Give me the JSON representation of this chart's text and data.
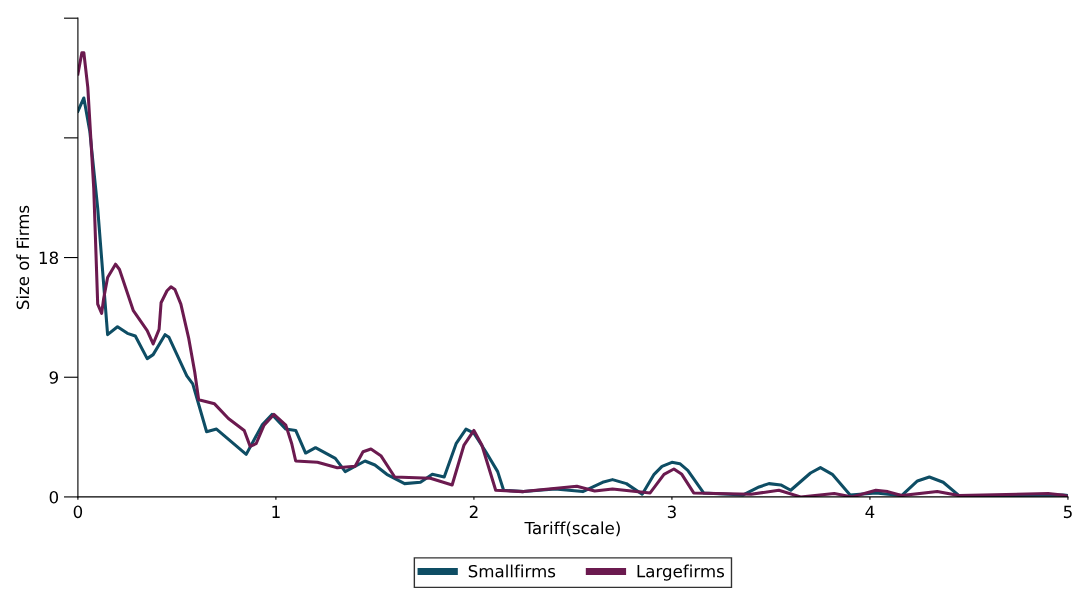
{
  "chart_data": {
    "type": "line",
    "xlabel": "Tariff(scale)",
    "ylabel": "Size of Firms",
    "xlim": [
      0,
      5
    ],
    "xticks": [
      0,
      1,
      2,
      3,
      4,
      5
    ],
    "ylim": [
      0,
      36
    ],
    "yticks": [
      0,
      9,
      18,
      {
        "value": 27,
        "label": null
      },
      {
        "value": 36,
        "label": null
      }
    ],
    "grid": false,
    "legend": "bottom",
    "marker": "none",
    "line_style": "solid",
    "series": [
      {
        "name": "Smallfirms",
        "color": "#0e4d64",
        "x": [
          0,
          0.03,
          0.06,
          0.1,
          0.15,
          0.2,
          0.25,
          0.29,
          0.35,
          0.38,
          0.44,
          0.46,
          0.55,
          0.58,
          0.65,
          0.7,
          0.85,
          0.93,
          0.98,
          1.05,
          1.1,
          1.15,
          1.2,
          1.3,
          1.35,
          1.45,
          1.5,
          1.56,
          1.65,
          1.73,
          1.79,
          1.85,
          1.91,
          1.96,
          2.0,
          2.06,
          2.12,
          2.15,
          2.25,
          2.41,
          2.55,
          2.65,
          2.7,
          2.77,
          2.85,
          2.91,
          2.95,
          3.0,
          3.04,
          3.08,
          3.16,
          3.36,
          3.44,
          3.49,
          3.55,
          3.6,
          3.7,
          3.75,
          3.81,
          3.9,
          4.03,
          4.16,
          4.24,
          4.3,
          4.37,
          4.45,
          4.7,
          4.98,
          5.0
        ],
        "values": [
          29.0,
          30.0,
          27.5,
          21.7,
          12.2,
          12.8,
          12.3,
          12.1,
          10.4,
          10.7,
          12.2,
          12.0,
          9.1,
          8.5,
          4.9,
          5.1,
          3.2,
          5.4,
          6.2,
          5.1,
          5.0,
          3.3,
          3.7,
          2.9,
          1.9,
          2.7,
          2.4,
          1.7,
          1.0,
          1.1,
          1.7,
          1.5,
          4.0,
          5.1,
          4.8,
          3.4,
          1.9,
          0.5,
          0.4,
          0.6,
          0.4,
          1.1,
          1.3,
          1.0,
          0.2,
          1.7,
          2.3,
          2.6,
          2.5,
          2.0,
          0.3,
          0.15,
          0.75,
          1.0,
          0.9,
          0.5,
          1.8,
          2.2,
          1.7,
          0.15,
          0.3,
          0.1,
          1.2,
          1.5,
          1.1,
          0.1,
          0.1,
          0.15,
          0.1
        ]
      },
      {
        "name": "Largefirms",
        "color": "#6b1a4f",
        "x": [
          0,
          0.02,
          0.03,
          0.05,
          0.08,
          0.1,
          0.12,
          0.13,
          0.15,
          0.19,
          0.21,
          0.28,
          0.35,
          0.38,
          0.41,
          0.42,
          0.45,
          0.47,
          0.49,
          0.52,
          0.56,
          0.59,
          0.61,
          0.64,
          0.69,
          0.76,
          0.84,
          0.87,
          0.9,
          0.94,
          0.99,
          1.05,
          1.08,
          1.1,
          1.21,
          1.31,
          1.4,
          1.44,
          1.48,
          1.53,
          1.6,
          1.78,
          1.89,
          1.95,
          2.0,
          2.04,
          2.11,
          2.25,
          2.52,
          2.61,
          2.7,
          2.89,
          2.96,
          3.01,
          3.05,
          3.11,
          3.4,
          3.54,
          3.65,
          3.82,
          3.91,
          4.03,
          4.09,
          4.16,
          4.34,
          4.45,
          4.9,
          4.97,
          5.0
        ],
        "values": [
          31.8,
          33.4,
          33.4,
          30.8,
          23.2,
          14.5,
          13.8,
          14.9,
          16.5,
          17.5,
          17.1,
          14.0,
          12.5,
          11.5,
          12.6,
          14.6,
          15.5,
          15.8,
          15.6,
          14.5,
          11.9,
          9.4,
          7.3,
          7.2,
          7.0,
          5.9,
          5.0,
          3.8,
          4.0,
          5.4,
          6.2,
          5.4,
          4.0,
          2.7,
          2.6,
          2.2,
          2.3,
          3.4,
          3.6,
          3.1,
          1.5,
          1.4,
          0.9,
          3.9,
          5.0,
          3.9,
          0.5,
          0.4,
          0.8,
          0.45,
          0.6,
          0.3,
          1.7,
          2.1,
          1.7,
          0.3,
          0.2,
          0.5,
          0.0,
          0.25,
          0.0,
          0.5,
          0.4,
          0.1,
          0.4,
          0.1,
          0.25,
          0.15,
          0.05
        ]
      }
    ]
  }
}
